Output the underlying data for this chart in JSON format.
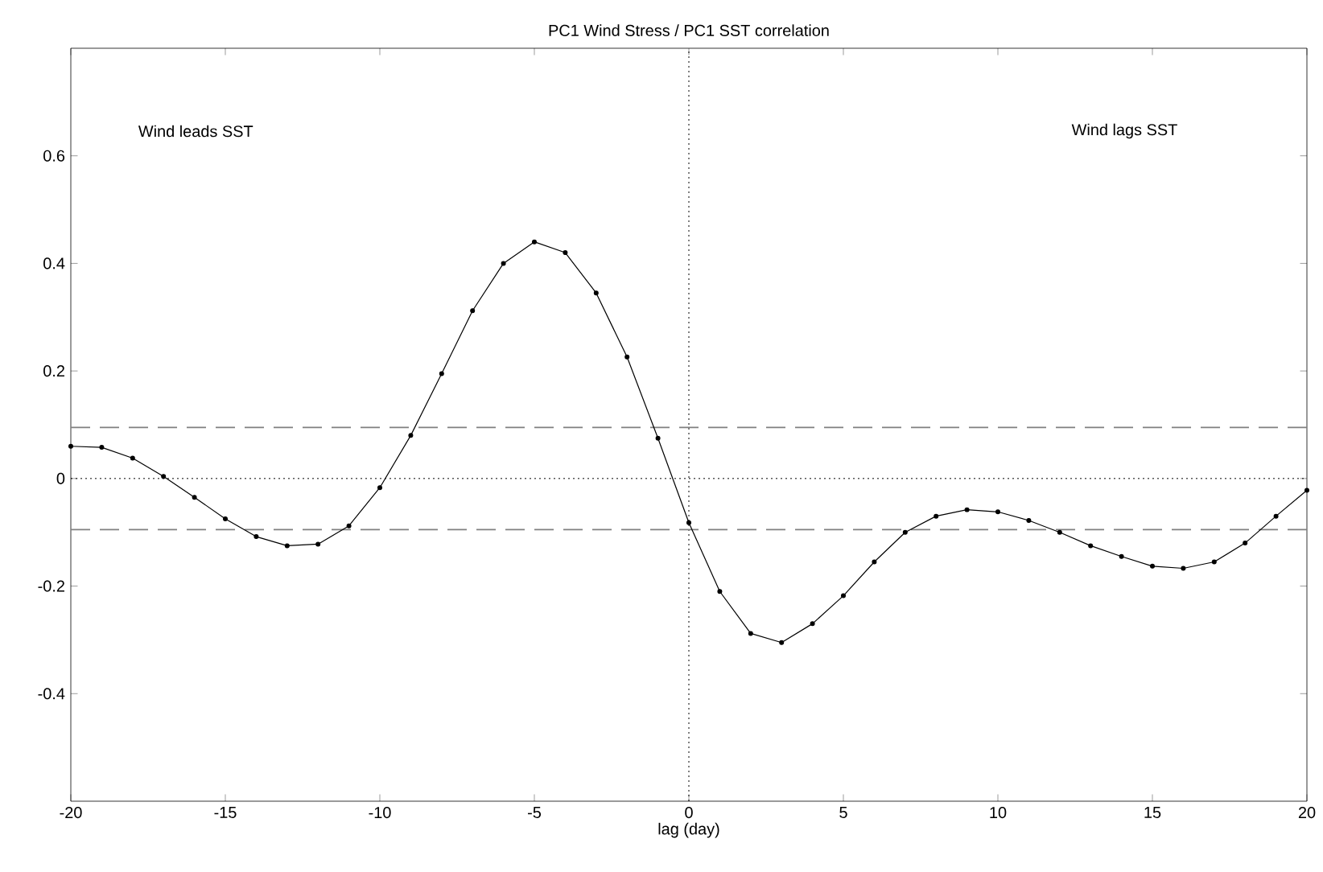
{
  "chart_data": {
    "type": "line",
    "title": "PC1 Wind Stress / PC1 SST correlation",
    "xlabel": "lag (day)",
    "x": [
      -20,
      -19,
      -18,
      -17,
      -16,
      -15,
      -14,
      -13,
      -12,
      -11,
      -10,
      -9,
      -8,
      -7,
      -6,
      -5,
      -4,
      -3,
      -2,
      -1,
      0,
      1,
      2,
      3,
      4,
      5,
      6,
      7,
      8,
      9,
      10,
      11,
      12,
      13,
      14,
      15,
      16,
      17,
      18,
      19,
      20
    ],
    "series": [
      {
        "color": "#000000",
        "values": [
          0.06,
          0.058,
          0.038,
          0.004,
          -0.035,
          -0.075,
          -0.108,
          -0.125,
          -0.122,
          -0.088,
          -0.017,
          0.08,
          0.195,
          0.312,
          0.4,
          0.44,
          0.42,
          0.345,
          0.226,
          0.075,
          -0.082,
          -0.21,
          -0.288,
          -0.305,
          -0.27,
          -0.218,
          -0.155,
          -0.1,
          -0.07,
          -0.058,
          -0.062,
          -0.078,
          -0.1,
          -0.125,
          -0.145,
          -0.163,
          -0.167,
          -0.155,
          -0.12,
          -0.07,
          -0.022
        ]
      }
    ],
    "xlim": [
      -20,
      20
    ],
    "ylim": [
      -0.6,
      0.8
    ],
    "xticks": [
      -20,
      -15,
      -10,
      -5,
      0,
      5,
      10,
      15,
      20
    ],
    "yticks": [
      -0.4,
      -0.2,
      0,
      0.2,
      0.4,
      0.6
    ],
    "marker": "circle",
    "ref_lines": [
      {
        "axis": "y",
        "value": 0,
        "line_style": "dotted",
        "color": "#000000"
      },
      {
        "axis": "x",
        "value": 0,
        "line_style": "dotted",
        "color": "#000000"
      },
      {
        "axis": "y",
        "value": 0.095,
        "line_style": "dashed",
        "color": "#808080"
      },
      {
        "axis": "y",
        "value": -0.095,
        "line_style": "dashed",
        "color": "#808080"
      }
    ],
    "annotations": [
      "Wind leads SST",
      "Wind lags SST"
    ]
  }
}
